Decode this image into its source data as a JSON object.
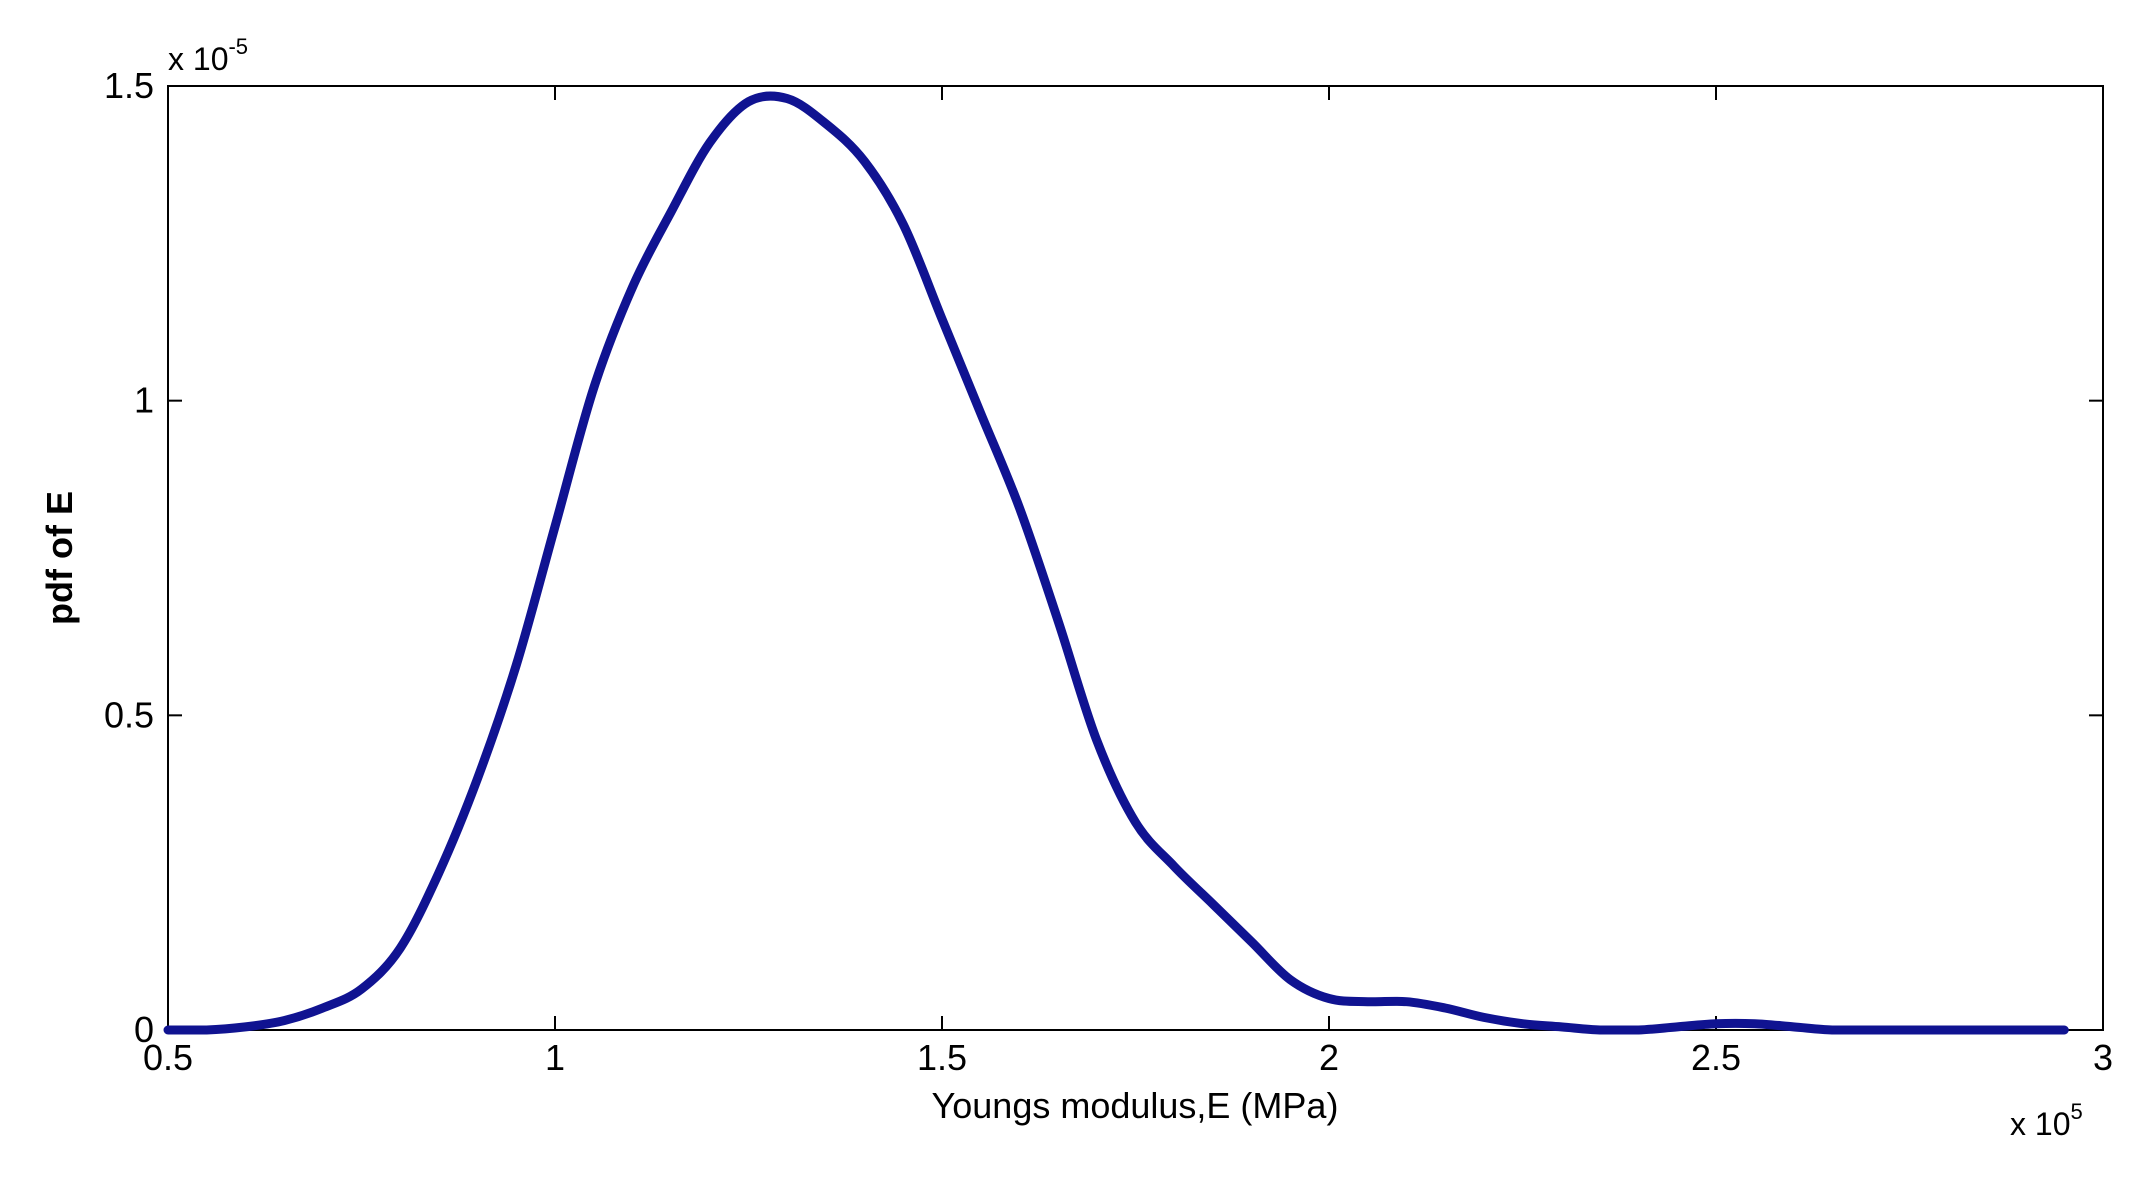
{
  "chart_data": {
    "type": "line",
    "xlabel": "Youngs modulus,E (MPa)",
    "ylabel": "pdf of E",
    "x_multiplier": {
      "base": "x 10",
      "exponent": "5"
    },
    "y_multiplier": {
      "base": "x 10",
      "exponent": "-5"
    },
    "xlim": [
      0.5,
      3
    ],
    "ylim": [
      0,
      1.5
    ],
    "x_ticks": [
      0.5,
      1,
      1.5,
      2,
      2.5,
      3
    ],
    "x_tick_labels": [
      "0.5",
      "1",
      "1.5",
      "2",
      "2.5",
      "3"
    ],
    "y_ticks": [
      0,
      0.5,
      1,
      1.5
    ],
    "y_tick_labels": [
      "0",
      "0.5",
      "1",
      "1.5"
    ],
    "grid": false,
    "series": [
      {
        "color": "#101391",
        "x": [
          0.5,
          0.55,
          0.6,
          0.65,
          0.7,
          0.75,
          0.8,
          0.85,
          0.9,
          0.95,
          1.0,
          1.05,
          1.1,
          1.15,
          1.2,
          1.25,
          1.3,
          1.35,
          1.4,
          1.45,
          1.5,
          1.55,
          1.6,
          1.65,
          1.7,
          1.75,
          1.8,
          1.85,
          1.9,
          1.95,
          2.0,
          2.05,
          2.1,
          2.15,
          2.2,
          2.25,
          2.3,
          2.35,
          2.4,
          2.45,
          2.5,
          2.55,
          2.6,
          2.65,
          2.7,
          2.75,
          2.8,
          2.85,
          2.9,
          2.95
        ],
        "y": [
          0.0,
          0.0,
          0.005,
          0.015,
          0.035,
          0.065,
          0.13,
          0.25,
          0.4,
          0.58,
          0.8,
          1.02,
          1.18,
          1.3,
          1.41,
          1.475,
          1.48,
          1.44,
          1.38,
          1.28,
          1.13,
          0.98,
          0.83,
          0.65,
          0.46,
          0.33,
          0.26,
          0.2,
          0.14,
          0.08,
          0.05,
          0.045,
          0.045,
          0.035,
          0.02,
          0.01,
          0.005,
          0.0,
          0.0,
          0.005,
          0.01,
          0.01,
          0.005,
          0.0,
          0.0,
          0.0,
          0.0,
          0.0,
          0.0,
          0.0
        ]
      }
    ]
  }
}
